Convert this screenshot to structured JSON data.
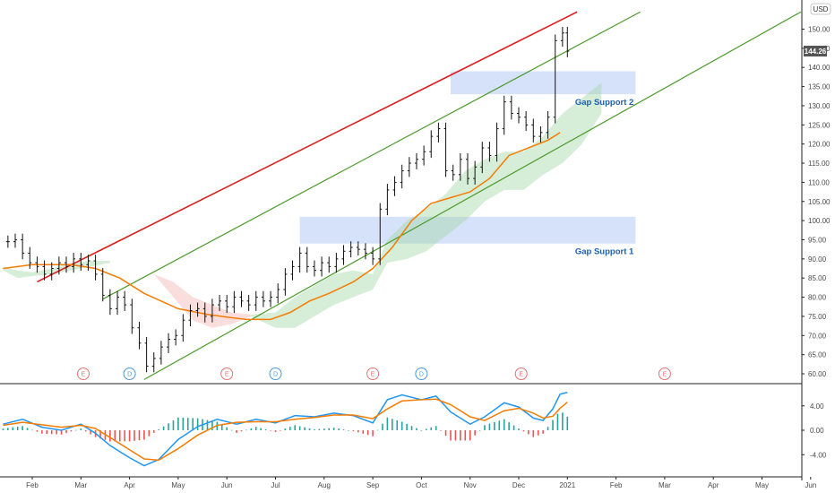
{
  "currency": "USD",
  "last_price": "144.26",
  "colors": {
    "up": "#26a69a",
    "down": "#ef5350",
    "candle": "#111111",
    "ma": "#f57c00",
    "resistance": "#e01e1e",
    "channel": "#4c9a2a",
    "zone": "#c8d8f8",
    "macd": "#2196f3",
    "signal": "#f57c00",
    "cloud_bull": "#a5d6a7",
    "cloud_bear": "#f4b6b6",
    "earnings": "#e57373",
    "dividend": "#4a9be0",
    "price_tag": "#555555"
  },
  "zones": [
    {
      "name": "zone-gap-support-2",
      "label": "Gap Support 2",
      "low": 133.0,
      "high": 139.0,
      "from": 8.6,
      "to": 12.4
    },
    {
      "name": "zone-gap-support-1",
      "label": "Gap Support 1",
      "low": 94.0,
      "high": 101.0,
      "from": 5.5,
      "to": 12.4
    }
  ],
  "events": [
    {
      "letter": "E",
      "type": "earnings",
      "t": 1.05
    },
    {
      "letter": "D",
      "type": "dividend",
      "t": 2.0
    },
    {
      "letter": "E",
      "type": "earnings",
      "t": 4.0
    },
    {
      "letter": "D",
      "type": "dividend",
      "t": 5.0
    },
    {
      "letter": "E",
      "type": "earnings",
      "t": 7.0
    },
    {
      "letter": "D",
      "type": "dividend",
      "t": 8.0
    },
    {
      "letter": "E",
      "type": "earnings",
      "t": 10.05
    },
    {
      "letter": "E",
      "type": "earnings",
      "t": 13.0
    }
  ],
  "chart_data": [
    {
      "type": "candlestick",
      "title": "",
      "xlabel": "",
      "ylabel": "",
      "x_ticks": [
        "Feb",
        "Mar",
        "Apr",
        "May",
        "Jun",
        "Jul",
        "Aug",
        "Sep",
        "Oct",
        "Nov",
        "Dec",
        "2021",
        "Feb",
        "Mar",
        "Apr",
        "May",
        "Jun"
      ],
      "y_ticks": [
        "60.00",
        "65.00",
        "70.00",
        "75.00",
        "80.00",
        "85.00",
        "90.00",
        "95.00",
        "100.00",
        "105.00",
        "110.00",
        "115.00",
        "120.00",
        "125.00",
        "130.00",
        "135.00",
        "140.00",
        "145.00",
        "150.00"
      ],
      "ylim": [
        57,
        154
      ],
      "grid": false,
      "trend_lines": [
        {
          "name": "resistance",
          "color": "red",
          "points": [
            [
              0.1,
              84.0
            ],
            [
              11.2,
              154.5
            ]
          ]
        },
        {
          "name": "upper-channel",
          "color": "green",
          "points": [
            [
              1.45,
              79.5
            ],
            [
              12.5,
              154.5
            ]
          ]
        },
        {
          "name": "lower-channel",
          "color": "green",
          "points": [
            [
              2.3,
              58.5
            ],
            [
              15.8,
              154.5
            ]
          ]
        }
      ],
      "price_series": [
        {
          "t": -0.5,
          "c": 94.5
        },
        {
          "t": -0.35,
          "c": 95.0
        },
        {
          "t": -0.2,
          "c": 91.5
        },
        {
          "t": -0.05,
          "c": 89.0
        },
        {
          "t": 0.1,
          "c": 88.0
        },
        {
          "t": 0.25,
          "c": 86.0
        },
        {
          "t": 0.4,
          "c": 87.5
        },
        {
          "t": 0.55,
          "c": 89.0
        },
        {
          "t": 0.7,
          "c": 88.0
        },
        {
          "t": 0.85,
          "c": 90.0
        },
        {
          "t": 1.0,
          "c": 88.5
        },
        {
          "t": 1.15,
          "c": 89.5
        },
        {
          "t": 1.3,
          "c": 86.0
        },
        {
          "t": 1.45,
          "c": 80.5
        },
        {
          "t": 1.6,
          "c": 77.0
        },
        {
          "t": 1.75,
          "c": 80.0
        },
        {
          "t": 1.9,
          "c": 78.0
        },
        {
          "t": 2.05,
          "c": 72.0
        },
        {
          "t": 2.2,
          "c": 68.0
        },
        {
          "t": 2.35,
          "c": 62.0
        },
        {
          "t": 2.5,
          "c": 64.0
        },
        {
          "t": 2.65,
          "c": 67.0
        },
        {
          "t": 2.8,
          "c": 69.0
        },
        {
          "t": 2.95,
          "c": 70.0
        },
        {
          "t": 3.1,
          "c": 74.0
        },
        {
          "t": 3.25,
          "c": 76.5
        },
        {
          "t": 3.4,
          "c": 77.0
        },
        {
          "t": 3.55,
          "c": 75.0
        },
        {
          "t": 3.7,
          "c": 78.0
        },
        {
          "t": 3.85,
          "c": 79.0
        },
        {
          "t": 4.0,
          "c": 77.5
        },
        {
          "t": 4.15,
          "c": 80.0
        },
        {
          "t": 4.3,
          "c": 79.0
        },
        {
          "t": 4.45,
          "c": 78.0
        },
        {
          "t": 4.6,
          "c": 80.0
        },
        {
          "t": 4.75,
          "c": 79.0
        },
        {
          "t": 4.9,
          "c": 80.0
        },
        {
          "t": 5.05,
          "c": 82.0
        },
        {
          "t": 5.2,
          "c": 86.0
        },
        {
          "t": 5.35,
          "c": 88.0
        },
        {
          "t": 5.5,
          "c": 91.5
        },
        {
          "t": 5.65,
          "c": 88.0
        },
        {
          "t": 5.8,
          "c": 87.0
        },
        {
          "t": 5.95,
          "c": 89.0
        },
        {
          "t": 6.1,
          "c": 88.0
        },
        {
          "t": 6.25,
          "c": 90.0
        },
        {
          "t": 6.4,
          "c": 92.0
        },
        {
          "t": 6.55,
          "c": 93.0
        },
        {
          "t": 6.7,
          "c": 92.5
        },
        {
          "t": 6.85,
          "c": 91.5
        },
        {
          "t": 7.0,
          "c": 90.0
        },
        {
          "t": 7.15,
          "c": 103.0
        },
        {
          "t": 7.3,
          "c": 108.0
        },
        {
          "t": 7.45,
          "c": 110.0
        },
        {
          "t": 7.6,
          "c": 113.0
        },
        {
          "t": 7.75,
          "c": 115.0
        },
        {
          "t": 7.9,
          "c": 116.0
        },
        {
          "t": 8.05,
          "c": 118.0
        },
        {
          "t": 8.2,
          "c": 122.0
        },
        {
          "t": 8.35,
          "c": 124.0
        },
        {
          "t": 8.5,
          "c": 113.0
        },
        {
          "t": 8.65,
          "c": 112.0
        },
        {
          "t": 8.8,
          "c": 116.0
        },
        {
          "t": 8.95,
          "c": 111.0
        },
        {
          "t": 9.1,
          "c": 114.0
        },
        {
          "t": 9.25,
          "c": 119.0
        },
        {
          "t": 9.4,
          "c": 117.0
        },
        {
          "t": 9.55,
          "c": 124.0
        },
        {
          "t": 9.7,
          "c": 131.0
        },
        {
          "t": 9.85,
          "c": 128.0
        },
        {
          "t": 10.0,
          "c": 127.0
        },
        {
          "t": 10.15,
          "c": 125.0
        },
        {
          "t": 10.3,
          "c": 122.0
        },
        {
          "t": 10.45,
          "c": 123.0
        },
        {
          "t": 10.6,
          "c": 127.0
        },
        {
          "t": 10.75,
          "c": 147.0
        },
        {
          "t": 10.9,
          "c": 149.0
        },
        {
          "t": 11.0,
          "c": 144.26
        }
      ],
      "ma_series": [
        {
          "t": -0.6,
          "v": 87.5
        },
        {
          "t": 0.0,
          "v": 88.5
        },
        {
          "t": 0.8,
          "v": 88.5
        },
        {
          "t": 1.3,
          "v": 87.5
        },
        {
          "t": 1.8,
          "v": 85.0
        },
        {
          "t": 2.3,
          "v": 81.0
        },
        {
          "t": 3.0,
          "v": 77.0
        },
        {
          "t": 3.6,
          "v": 75.5
        },
        {
          "t": 4.0,
          "v": 74.8
        },
        {
          "t": 4.4,
          "v": 74.2
        },
        {
          "t": 4.9,
          "v": 74.2
        },
        {
          "t": 5.3,
          "v": 76.0
        },
        {
          "t": 5.7,
          "v": 79.0
        },
        {
          "t": 6.1,
          "v": 81.0
        },
        {
          "t": 6.6,
          "v": 84.0
        },
        {
          "t": 7.0,
          "v": 87.5
        },
        {
          "t": 7.4,
          "v": 93.0
        },
        {
          "t": 7.8,
          "v": 100.0
        },
        {
          "t": 8.2,
          "v": 104.5
        },
        {
          "t": 8.6,
          "v": 106.0
        },
        {
          "t": 9.0,
          "v": 107.5
        },
        {
          "t": 9.4,
          "v": 111.0
        },
        {
          "t": 9.8,
          "v": 117.0
        },
        {
          "t": 10.2,
          "v": 119.0
        },
        {
          "t": 10.6,
          "v": 121.0
        },
        {
          "t": 10.85,
          "v": 123.0
        }
      ],
      "cloud_bull": [
        {
          "t": -0.6,
          "a": 87.0,
          "b": 87.8
        },
        {
          "t": -0.3,
          "a": 85.0,
          "b": 87.0
        },
        {
          "t": 0.0,
          "a": 85.5,
          "b": 86.5
        },
        {
          "t": 0.4,
          "a": 86.0,
          "b": 87.5
        },
        {
          "t": 0.8,
          "a": 87.0,
          "b": 89.0
        },
        {
          "t": 1.2,
          "a": 88.0,
          "b": 89.5
        },
        {
          "t": 1.6,
          "a": 89.0,
          "b": 89.5
        },
        {
          "t": 4.5,
          "a": 75.0,
          "b": 75.5
        },
        {
          "t": 5.0,
          "a": 72.0,
          "b": 76.0
        },
        {
          "t": 5.4,
          "a": 72.0,
          "b": 80.0
        },
        {
          "t": 5.8,
          "a": 75.0,
          "b": 83.0
        },
        {
          "t": 6.2,
          "a": 78.0,
          "b": 86.0
        },
        {
          "t": 6.6,
          "a": 80.0,
          "b": 87.0
        },
        {
          "t": 7.0,
          "a": 82.0,
          "b": 86.0
        },
        {
          "t": 7.3,
          "a": 89.0,
          "b": 95.0
        },
        {
          "t": 7.7,
          "a": 90.0,
          "b": 100.0
        },
        {
          "t": 8.1,
          "a": 92.0,
          "b": 103.0
        },
        {
          "t": 8.5,
          "a": 96.0,
          "b": 107.0
        },
        {
          "t": 8.9,
          "a": 100.0,
          "b": 113.0
        },
        {
          "t": 9.3,
          "a": 105.0,
          "b": 116.0
        },
        {
          "t": 9.7,
          "a": 108.0,
          "b": 118.0
        },
        {
          "t": 10.1,
          "a": 108.0,
          "b": 118.0
        },
        {
          "t": 10.5,
          "a": 112.0,
          "b": 122.0
        },
        {
          "t": 10.9,
          "a": 115.0,
          "b": 128.0
        },
        {
          "t": 11.3,
          "a": 120.0,
          "b": 132.0
        },
        {
          "t": 11.7,
          "a": 128.0,
          "b": 136.0
        }
      ],
      "cloud_bear": [
        {
          "t": 2.5,
          "a": 86.0,
          "b": 86.0
        },
        {
          "t": 2.9,
          "a": 80.0,
          "b": 84.0
        },
        {
          "t": 3.3,
          "a": 74.0,
          "b": 80.0
        },
        {
          "t": 3.7,
          "a": 72.0,
          "b": 78.0
        },
        {
          "t": 4.1,
          "a": 73.0,
          "b": 76.0
        },
        {
          "t": 4.5,
          "a": 75.0,
          "b": 75.5
        }
      ],
      "macd": {
        "ylim": [
          -6.5,
          7.5
        ],
        "y_ticks": [
          "4.00",
          "0.00",
          "-4.00"
        ],
        "macd_line": [
          {
            "t": -0.6,
            "v": 1.0
          },
          {
            "t": -0.2,
            "v": 1.8
          },
          {
            "t": 0.2,
            "v": 0.5
          },
          {
            "t": 0.6,
            "v": 0.0
          },
          {
            "t": 1.0,
            "v": 1.0
          },
          {
            "t": 1.3,
            "v": -0.5
          },
          {
            "t": 1.6,
            "v": -2.5
          },
          {
            "t": 2.0,
            "v": -4.5
          },
          {
            "t": 2.3,
            "v": -5.8
          },
          {
            "t": 2.6,
            "v": -4.8
          },
          {
            "t": 3.0,
            "v": -1.5
          },
          {
            "t": 3.4,
            "v": 0.6
          },
          {
            "t": 3.8,
            "v": 1.8
          },
          {
            "t": 4.2,
            "v": 1.0
          },
          {
            "t": 4.6,
            "v": 1.8
          },
          {
            "t": 5.0,
            "v": 1.2
          },
          {
            "t": 5.4,
            "v": 2.4
          },
          {
            "t": 5.8,
            "v": 2.2
          },
          {
            "t": 6.2,
            "v": 2.8
          },
          {
            "t": 6.6,
            "v": 2.4
          },
          {
            "t": 7.0,
            "v": 1.2
          },
          {
            "t": 7.3,
            "v": 5.0
          },
          {
            "t": 7.6,
            "v": 5.8
          },
          {
            "t": 8.0,
            "v": 5.0
          },
          {
            "t": 8.3,
            "v": 5.6
          },
          {
            "t": 8.6,
            "v": 3.0
          },
          {
            "t": 9.0,
            "v": 1.0
          },
          {
            "t": 9.3,
            "v": 2.2
          },
          {
            "t": 9.7,
            "v": 4.5
          },
          {
            "t": 10.0,
            "v": 3.8
          },
          {
            "t": 10.3,
            "v": 2.0
          },
          {
            "t": 10.5,
            "v": 1.6
          },
          {
            "t": 10.7,
            "v": 3.5
          },
          {
            "t": 10.85,
            "v": 5.9
          },
          {
            "t": 11.0,
            "v": 6.2
          }
        ],
        "signal_line": [
          {
            "t": -0.6,
            "v": 0.8
          },
          {
            "t": -0.2,
            "v": 1.3
          },
          {
            "t": 0.2,
            "v": 0.9
          },
          {
            "t": 0.6,
            "v": 0.5
          },
          {
            "t": 1.0,
            "v": 0.8
          },
          {
            "t": 1.3,
            "v": 0.3
          },
          {
            "t": 1.6,
            "v": -1.2
          },
          {
            "t": 2.0,
            "v": -3.2
          },
          {
            "t": 2.3,
            "v": -4.7
          },
          {
            "t": 2.6,
            "v": -4.9
          },
          {
            "t": 3.0,
            "v": -3.0
          },
          {
            "t": 3.4,
            "v": -0.8
          },
          {
            "t": 3.8,
            "v": 0.8
          },
          {
            "t": 4.2,
            "v": 1.3
          },
          {
            "t": 4.6,
            "v": 1.4
          },
          {
            "t": 5.0,
            "v": 1.4
          },
          {
            "t": 5.4,
            "v": 1.8
          },
          {
            "t": 5.8,
            "v": 2.1
          },
          {
            "t": 6.2,
            "v": 2.5
          },
          {
            "t": 6.6,
            "v": 2.5
          },
          {
            "t": 7.0,
            "v": 1.9
          },
          {
            "t": 7.3,
            "v": 3.5
          },
          {
            "t": 7.6,
            "v": 4.8
          },
          {
            "t": 8.0,
            "v": 5.0
          },
          {
            "t": 8.3,
            "v": 5.1
          },
          {
            "t": 8.6,
            "v": 4.2
          },
          {
            "t": 9.0,
            "v": 2.2
          },
          {
            "t": 9.3,
            "v": 1.6
          },
          {
            "t": 9.7,
            "v": 3.2
          },
          {
            "t": 10.0,
            "v": 3.6
          },
          {
            "t": 10.3,
            "v": 2.8
          },
          {
            "t": 10.5,
            "v": 2.0
          },
          {
            "t": 10.7,
            "v": 2.3
          },
          {
            "t": 10.85,
            "v": 3.6
          },
          {
            "t": 11.0,
            "v": 4.6
          }
        ]
      }
    }
  ]
}
